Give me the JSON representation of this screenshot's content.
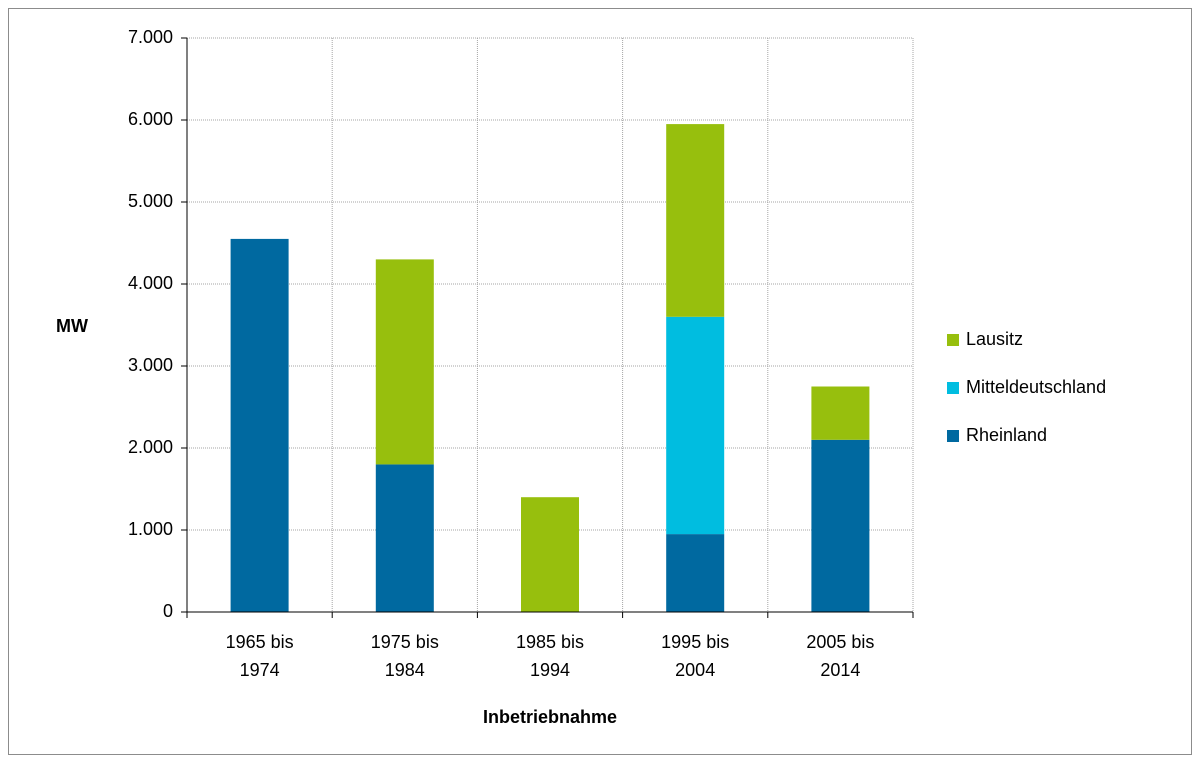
{
  "chart_data": {
    "type": "stacked_bar",
    "categories": [
      "1965 bis 1974",
      "1975 bis 1984",
      "1985 bis 1994",
      "1995 bis 2004",
      "2005 bis 2014"
    ],
    "series": [
      {
        "name": "Rheinland",
        "color": "#0069a0",
        "values": [
          4550,
          1800,
          0,
          950,
          2100
        ]
      },
      {
        "name": "Mitteldeutschland",
        "color": "#00bde0",
        "values": [
          0,
          0,
          0,
          2650,
          0
        ]
      },
      {
        "name": "Lausitz",
        "color": "#97bf0d",
        "values": [
          0,
          2500,
          1400,
          2350,
          650
        ]
      }
    ],
    "y_label": "MW",
    "x_label": "Inbetriebnahme",
    "ylim": [
      0,
      7000
    ],
    "yticks": [
      0,
      {
        "value": 1000,
        "label": "1.000"
      },
      {
        "value": 2000,
        "label": "2.000"
      },
      {
        "value": 3000,
        "label": "3.000"
      },
      {
        "value": 4000,
        "label": "4.000"
      },
      {
        "value": 5000,
        "label": "5.000"
      },
      {
        "value": 6000,
        "label": "6.000"
      },
      {
        "value": 7000,
        "label": "7.000"
      }
    ],
    "grid": true,
    "legend": "right"
  }
}
